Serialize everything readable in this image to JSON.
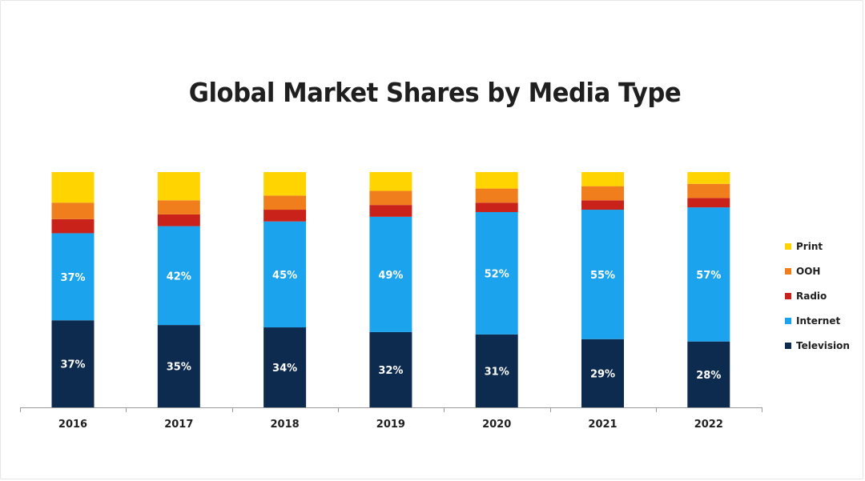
{
  "chart_data": {
    "type": "bar",
    "stacked": true,
    "title": "Global Market Shares by Media Type",
    "xlabel": "",
    "ylabel": "",
    "categories": [
      "2016",
      "2017",
      "2018",
      "2019",
      "2020",
      "2021",
      "2022"
    ],
    "ylim": [
      0,
      100
    ],
    "grid": false,
    "legend_position": "right",
    "series": [
      {
        "name": "Television",
        "color": "#0d2a4f",
        "values": [
          37,
          35,
          34,
          32,
          31,
          29,
          28
        ],
        "labels": [
          "37%",
          "35%",
          "34%",
          "32%",
          "31%",
          "29%",
          "28%"
        ]
      },
      {
        "name": "Internet",
        "color": "#1ba3ee",
        "values": [
          37,
          42,
          45,
          49,
          52,
          55,
          57
        ],
        "labels": [
          "37%",
          "42%",
          "45%",
          "49%",
          "52%",
          "55%",
          "57%"
        ]
      },
      {
        "name": "Radio",
        "color": "#c8221a",
        "values": [
          6,
          5,
          5,
          5,
          4,
          4,
          4
        ],
        "labels": []
      },
      {
        "name": "OOH",
        "color": "#f07e1c",
        "values": [
          7,
          6,
          6,
          6,
          6,
          6,
          6
        ],
        "labels": []
      },
      {
        "name": "Print",
        "color": "#ffd400",
        "values": [
          13,
          12,
          10,
          8,
          7,
          6,
          5
        ],
        "labels": []
      }
    ],
    "legend_order": [
      "Print",
      "OOH",
      "Radio",
      "Internet",
      "Television"
    ]
  }
}
